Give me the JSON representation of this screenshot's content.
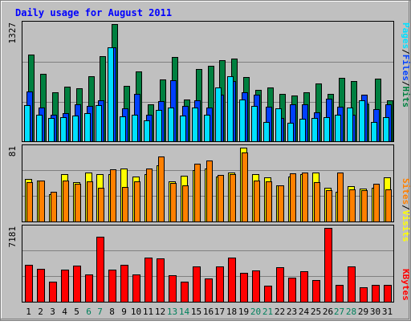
{
  "colors": {
    "background": "#c0c0c0",
    "frame_dark": "#808080",
    "frame_light": "#ffffff",
    "title": "#0000ff",
    "hits": "#008040",
    "files": "#0040ff",
    "pages": "#00e0ff",
    "visits": "#ffff00",
    "sites": "#ff8000",
    "kbytes": "#ff0000",
    "weekend_label": "#00805c",
    "weekday_label": "#000000"
  },
  "chart_data": [
    {
      "type": "bar",
      "title": "Daily usage for August 2011",
      "ylabel": "Pages / Files / Hits",
      "yaxis_max_label": "1327",
      "ylim": [
        0,
        1327
      ],
      "grid": true,
      "categories": [
        "1",
        "2",
        "3",
        "4",
        "5",
        "6",
        "7",
        "8",
        "9",
        "10",
        "11",
        "12",
        "13",
        "14",
        "15",
        "16",
        "17",
        "18",
        "19",
        "20",
        "21",
        "22",
        "23",
        "24",
        "25",
        "26",
        "27",
        "28",
        "29",
        "30",
        "31"
      ],
      "weekend_days": [
        "6",
        "7",
        "13",
        "14",
        "20",
        "21",
        "27",
        "28"
      ],
      "series": [
        {
          "name": "Hits",
          "values": [
            980,
            760,
            550,
            620,
            600,
            740,
            960,
            1327,
            630,
            790,
            420,
            700,
            950,
            470,
            820,
            850,
            920,
            940,
            730,
            580,
            610,
            540,
            520,
            550,
            650,
            540,
            720,
            680,
            430,
            710,
            460
          ]
        },
        {
          "name": "Files",
          "values": [
            560,
            380,
            300,
            320,
            420,
            400,
            460,
            1060,
            370,
            540,
            300,
            450,
            690,
            400,
            460,
            380,
            530,
            680,
            550,
            530,
            390,
            260,
            420,
            420,
            330,
            480,
            390,
            300,
            530,
            360,
            420
          ]
        },
        {
          "name": "Pages",
          "values": [
            410,
            300,
            260,
            270,
            290,
            320,
            410,
            1060,
            280,
            300,
            240,
            350,
            380,
            290,
            380,
            300,
            610,
            740,
            470,
            400,
            220,
            370,
            210,
            250,
            260,
            270,
            300,
            380,
            460,
            220,
            270
          ]
        }
      ]
    },
    {
      "type": "bar",
      "ylabel": "Sites / Visits",
      "yaxis_max_label": "81",
      "ylim": [
        0,
        81
      ],
      "grid": true,
      "categories": [
        "1",
        "2",
        "3",
        "4",
        "5",
        "6",
        "7",
        "8",
        "9",
        "10",
        "11",
        "12",
        "13",
        "14",
        "15",
        "16",
        "17",
        "18",
        "19",
        "20",
        "21",
        "22",
        "23",
        "24",
        "25",
        "26",
        "27",
        "28",
        "29",
        "30",
        "31"
      ],
      "series": [
        {
          "name": "Visits",
          "values": [
            47,
            45,
            30,
            52,
            43,
            54,
            52,
            52,
            58,
            49,
            52,
            62,
            44,
            50,
            56,
            58,
            49,
            54,
            81,
            52,
            48,
            40,
            49,
            52,
            54,
            37,
            33,
            39,
            36,
            37,
            48
          ]
        },
        {
          "name": "Sites",
          "values": [
            43,
            45,
            33,
            45,
            41,
            44,
            37,
            57,
            38,
            44,
            58,
            71,
            42,
            40,
            63,
            67,
            51,
            52,
            76,
            45,
            44,
            40,
            53,
            54,
            43,
            34,
            54,
            35,
            34,
            41,
            35
          ]
        }
      ]
    },
    {
      "type": "bar",
      "ylabel": "KBytes",
      "yaxis_max_label": "7181",
      "ylim": [
        0,
        7181
      ],
      "grid": true,
      "categories": [
        "1",
        "2",
        "3",
        "4",
        "5",
        "6",
        "7",
        "8",
        "9",
        "10",
        "11",
        "12",
        "13",
        "14",
        "15",
        "16",
        "17",
        "18",
        "19",
        "20",
        "21",
        "22",
        "23",
        "24",
        "25",
        "26",
        "27",
        "28",
        "29",
        "30",
        "31"
      ],
      "series": [
        {
          "name": "KBytes",
          "values": [
            3560,
            3200,
            1950,
            3100,
            3480,
            2640,
            6300,
            3100,
            3600,
            2620,
            4300,
            4200,
            2550,
            1920,
            3460,
            2290,
            3420,
            4300,
            2780,
            3020,
            1530,
            3320,
            2340,
            2980,
            2100,
            7181,
            1630,
            3420,
            1400,
            1610,
            1670
          ]
        }
      ]
    }
  ]
}
